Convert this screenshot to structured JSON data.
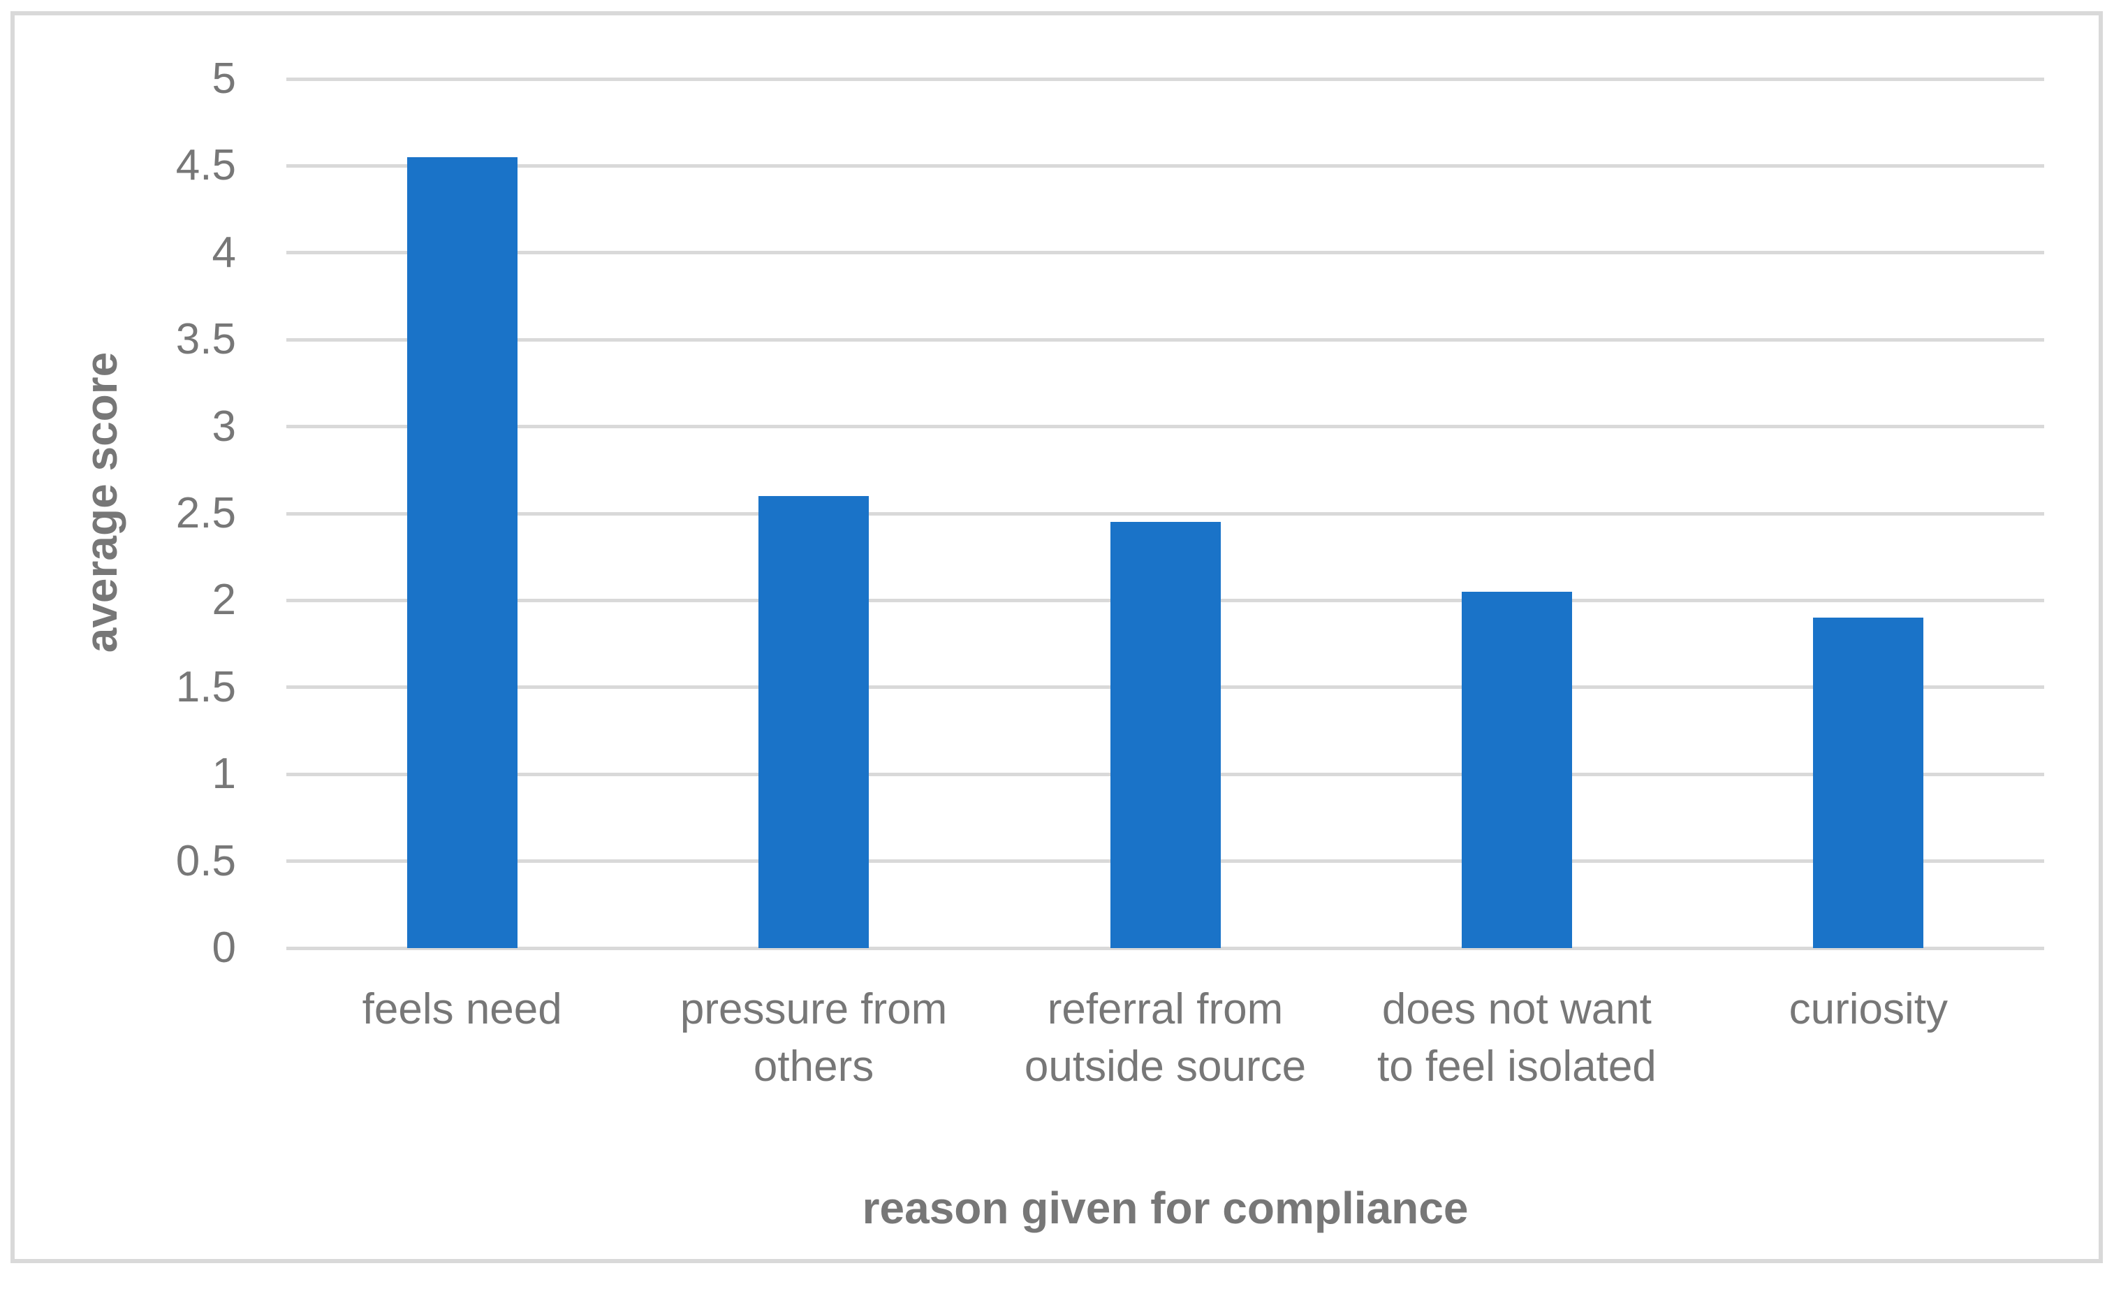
{
  "figure": {
    "background_color": "#ffffff",
    "frame_color": "#d9d9d9",
    "gridline_color": "#d9d9d9",
    "bar_color": "#1a73c8",
    "text_color": "#777777"
  },
  "chart_data": {
    "type": "bar",
    "title": "",
    "categories": [
      "feels need",
      "pressure from others",
      "referral from outside source",
      "does not want to feel isolated",
      "curiosity"
    ],
    "values": [
      4.55,
      2.6,
      2.45,
      2.05,
      1.9
    ],
    "xlabel": "reason given for compliance",
    "ylabel": "average score",
    "ylim": [
      0,
      5
    ],
    "ytick_step": 0.5,
    "yticks": [
      "0",
      "0.5",
      "1",
      "1.5",
      "2",
      "2.5",
      "3",
      "3.5",
      "4",
      "4.5",
      "5"
    ],
    "grid": "horizontal",
    "legend": "none",
    "bar_color": "#1a73c8"
  }
}
